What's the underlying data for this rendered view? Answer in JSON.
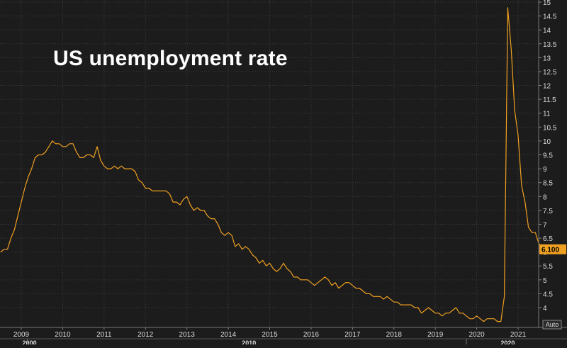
{
  "chart_data": {
    "type": "line",
    "title": "US unemployment rate",
    "xlabel": "",
    "ylabel": "",
    "ylim": [
      3.5,
      15
    ],
    "xlim": [
      2008.5,
      2021.5
    ],
    "grid": true,
    "y_ticks": [
      "4",
      "4.5",
      "5",
      "5.5",
      "6",
      "6.5",
      "7",
      "7.5",
      "8",
      "8.5",
      "9",
      "9.5",
      "10",
      "10.5",
      "11",
      "11.5",
      "12",
      "12.5",
      "13",
      "13.5",
      "14",
      "14.5",
      "15"
    ],
    "x_ticks": [
      "2009",
      "2010",
      "2011",
      "2012",
      "2013",
      "2014",
      "2015",
      "2016",
      "2017",
      "2018",
      "2019",
      "2020",
      "2021"
    ],
    "x_tick_values": [
      2009,
      2010,
      2011,
      2012,
      2013,
      2014,
      2015,
      2016,
      2017,
      2018,
      2019,
      2020,
      2021
    ],
    "x_group_labels": [
      "2000",
      "2010",
      "2020"
    ],
    "x_group_values": [
      2009.2,
      2014.5,
      2020.75
    ],
    "last_value_label": "6.100",
    "scale_button": "Auto",
    "colors": {
      "line": "#f0a020",
      "background": "#1c1c1c",
      "grid": "#3a3a3a",
      "axis_text": "#dddddd",
      "label_bg": "#f0a020"
    },
    "series": [
      {
        "values": [
          6.0,
          6.1,
          6.1,
          6.5,
          6.8,
          7.3,
          7.8,
          8.3,
          8.7,
          9.0,
          9.4,
          9.5,
          9.5,
          9.6,
          9.8,
          10.0,
          9.9,
          9.9,
          9.8,
          9.8,
          9.9,
          9.9,
          9.6,
          9.4,
          9.4,
          9.5,
          9.5,
          9.4,
          9.8,
          9.3,
          9.1,
          9.0,
          9.0,
          9.1,
          9.0,
          9.1,
          9.0,
          9.0,
          9.0,
          8.9,
          8.6,
          8.5,
          8.3,
          8.3,
          8.2,
          8.2,
          8.2,
          8.2,
          8.2,
          8.1,
          7.8,
          7.8,
          7.7,
          7.9,
          8.0,
          7.7,
          7.5,
          7.6,
          7.5,
          7.5,
          7.3,
          7.2,
          7.2,
          7.0,
          6.7,
          6.6,
          6.7,
          6.6,
          6.2,
          6.3,
          6.1,
          6.2,
          6.1,
          5.9,
          5.8,
          5.6,
          5.7,
          5.5,
          5.6,
          5.4,
          5.3,
          5.4,
          5.6,
          5.4,
          5.3,
          5.1,
          5.1,
          5.0,
          5.0,
          5.0,
          4.9,
          4.8,
          4.9,
          5.0,
          5.1,
          5.0,
          4.8,
          4.9,
          4.7,
          4.8,
          4.9,
          4.9,
          4.8,
          4.7,
          4.7,
          4.6,
          4.5,
          4.5,
          4.4,
          4.4,
          4.4,
          4.3,
          4.4,
          4.3,
          4.2,
          4.2,
          4.1,
          4.1,
          4.1,
          4.1,
          4.0,
          4.0,
          3.8,
          3.9,
          4.0,
          3.9,
          3.8,
          3.8,
          3.7,
          3.8,
          3.8,
          3.9,
          4.0,
          3.8,
          3.8,
          3.7,
          3.6,
          3.6,
          3.7,
          3.6,
          3.5,
          3.6,
          3.6,
          3.6,
          3.5,
          3.5,
          4.4,
          14.8,
          13.3,
          11.1,
          10.2,
          8.4,
          7.8,
          6.9,
          6.7,
          6.7,
          6.3,
          6.2,
          6.0,
          6.1
        ]
      }
    ]
  }
}
